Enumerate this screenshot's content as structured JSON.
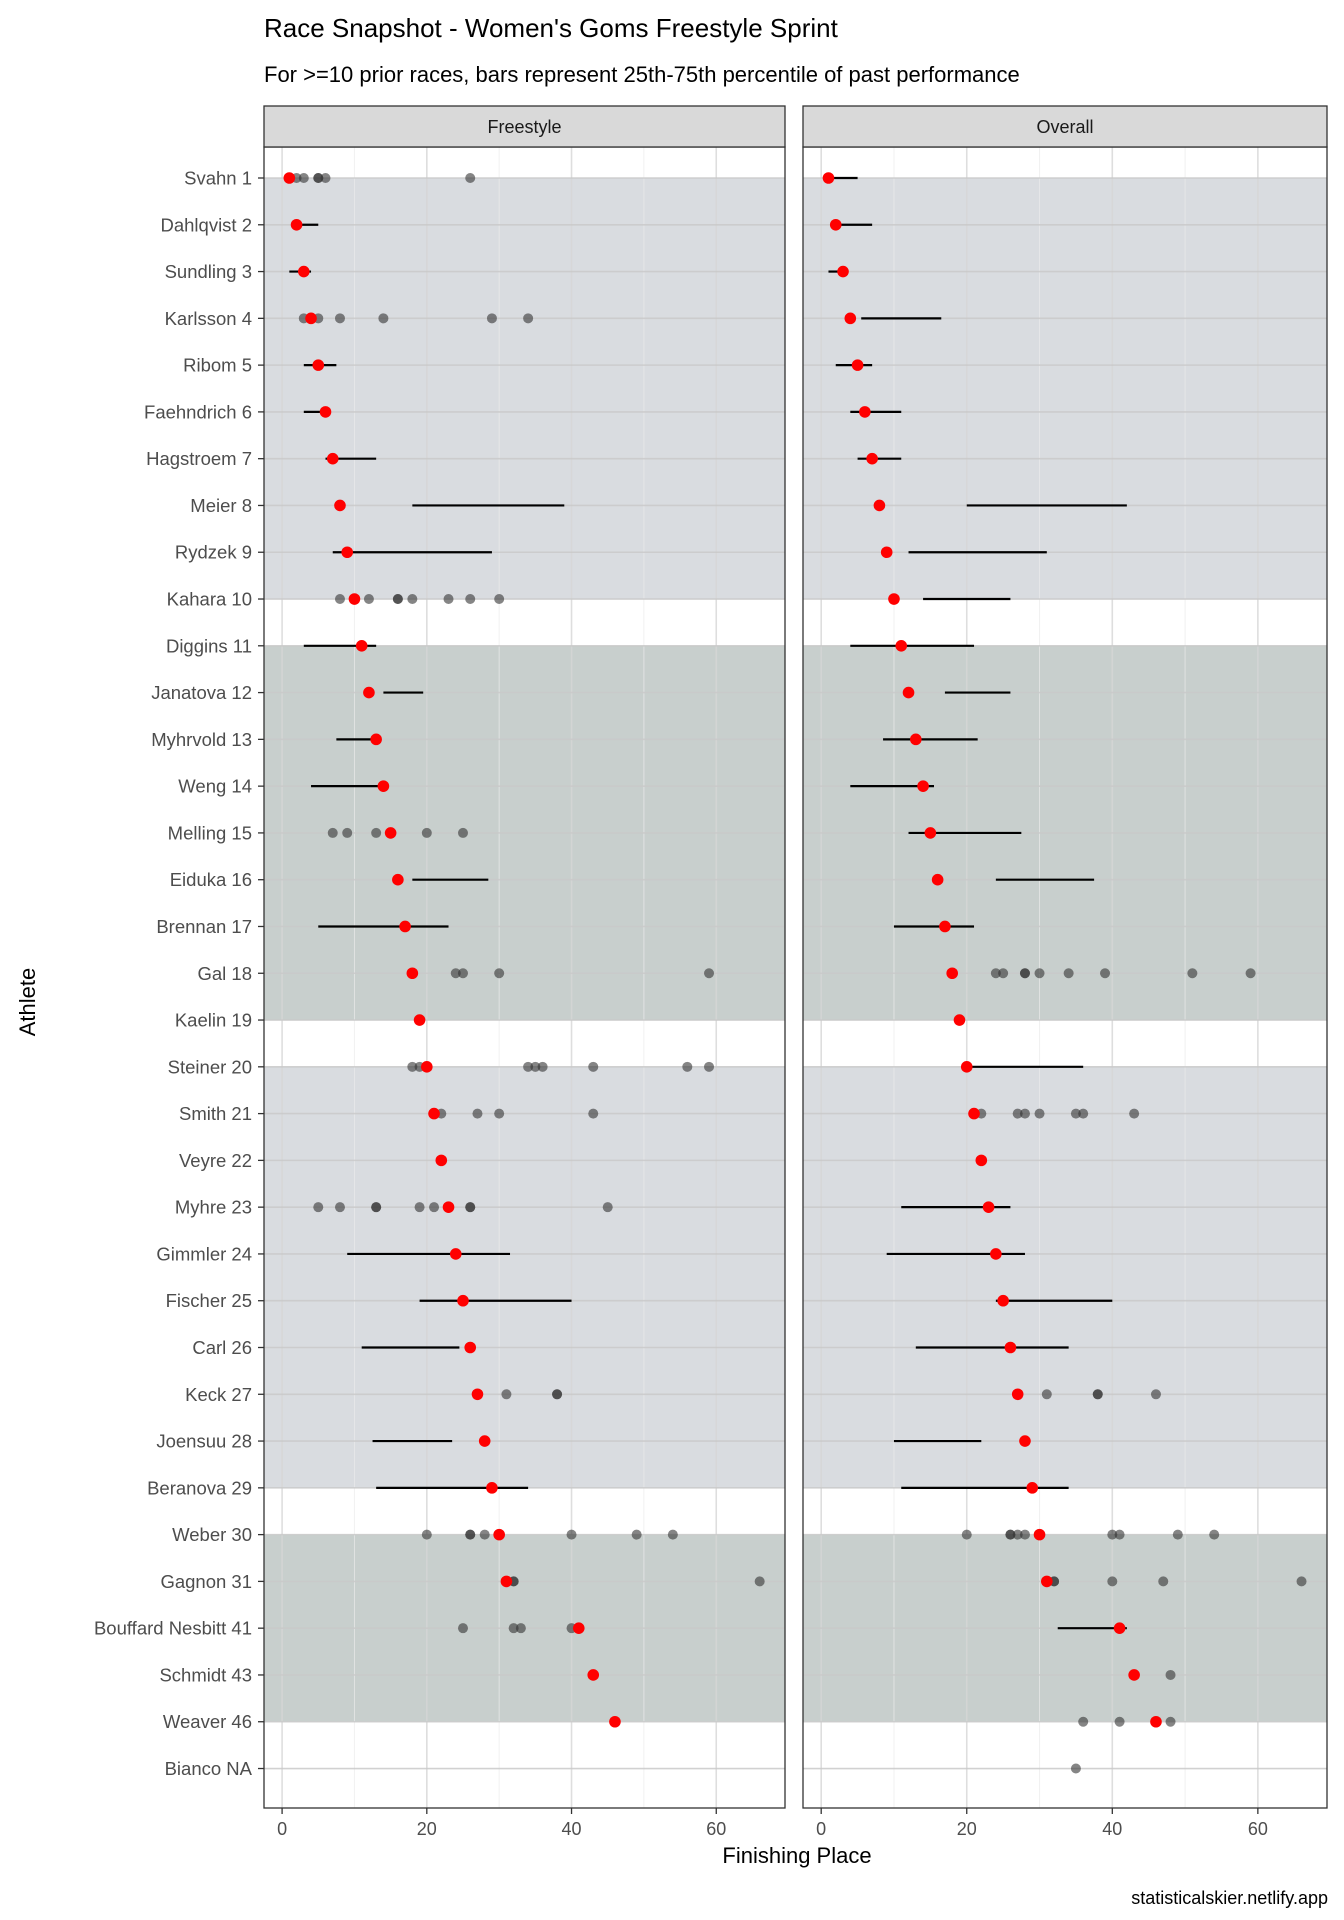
{
  "chart_data": {
    "type": "scatter",
    "title": "Race Snapshot -  Women's Goms Freestyle Sprint",
    "subtitle": "For >=10 prior races, bars represent 25th-75th percentile of past performance",
    "xlabel": "Finishing Place",
    "ylabel": "Athlete",
    "caption": "statisticalskier.netlify.app",
    "xlim": [
      -2.5,
      69.5
    ],
    "x_ticks": [
      0,
      20,
      40,
      60
    ],
    "grid": true,
    "panels": [
      "Freestyle",
      "Overall"
    ],
    "colors": {
      "current_place": "#ff0000",
      "past_place": "#333333",
      "band_light": "#d9dce0",
      "band_dark": "#c8cfcd",
      "strip": "#d9d9d9"
    },
    "bands": [
      {
        "from": 0,
        "to": 9,
        "shade": "light"
      },
      {
        "from": 10,
        "to": 18,
        "shade": "dark"
      },
      {
        "from": 19,
        "to": 28,
        "shade": "light"
      },
      {
        "from": 29,
        "to": 33,
        "shade": "dark"
      }
    ],
    "athletes": [
      {
        "label": "Svahn 1",
        "place": 1,
        "freestyle": {
          "points": [
            2,
            3,
            5,
            5,
            6,
            26
          ]
        },
        "overall": {
          "bar": [
            1,
            5
          ]
        }
      },
      {
        "label": "Dahlqvist 2",
        "place": 2,
        "freestyle": {
          "bar": [
            1.5,
            5
          ]
        },
        "overall": {
          "bar": [
            2,
            7
          ]
        }
      },
      {
        "label": "Sundling 3",
        "place": 3,
        "freestyle": {
          "bar": [
            1,
            4
          ]
        },
        "overall": {
          "bar": [
            1,
            3
          ]
        }
      },
      {
        "label": "Karlsson 4",
        "place": 4,
        "freestyle": {
          "points": [
            3,
            5,
            8,
            14,
            29,
            34
          ]
        },
        "overall": {
          "bar": [
            5.5,
            16.5
          ]
        }
      },
      {
        "label": "Ribom 5",
        "place": 5,
        "freestyle": {
          "bar": [
            3,
            7.5
          ]
        },
        "overall": {
          "bar": [
            2,
            7
          ]
        }
      },
      {
        "label": "Faehndrich 6",
        "place": 6,
        "freestyle": {
          "bar": [
            3,
            6.5
          ]
        },
        "overall": {
          "bar": [
            4,
            11
          ]
        }
      },
      {
        "label": "Hagstroem 7",
        "place": 7,
        "freestyle": {
          "bar": [
            6,
            13
          ]
        },
        "overall": {
          "bar": [
            5,
            11
          ]
        }
      },
      {
        "label": "Meier 8",
        "place": 8,
        "freestyle": {
          "bar": [
            18,
            39
          ]
        },
        "overall": {
          "bar": [
            20,
            42
          ]
        }
      },
      {
        "label": "Rydzek 9",
        "place": 9,
        "freestyle": {
          "bar": [
            7,
            29
          ]
        },
        "overall": {
          "bar": [
            12,
            31
          ]
        }
      },
      {
        "label": "Kahara 10",
        "place": 10,
        "freestyle": {
          "points": [
            8,
            12,
            16,
            16,
            18,
            23,
            26,
            30
          ]
        },
        "overall": {
          "bar": [
            14,
            26
          ]
        }
      },
      {
        "label": "Diggins 11",
        "place": 11,
        "freestyle": {
          "bar": [
            3,
            13
          ]
        },
        "overall": {
          "bar": [
            4,
            21
          ]
        }
      },
      {
        "label": "Janatova 12",
        "place": 12,
        "freestyle": {
          "bar": [
            14,
            19.5
          ]
        },
        "overall": {
          "bar": [
            17,
            26
          ]
        }
      },
      {
        "label": "Myhrvold 13",
        "place": 13,
        "freestyle": {
          "bar": [
            7.5,
            13.5
          ]
        },
        "overall": {
          "bar": [
            8.5,
            21.5
          ]
        }
      },
      {
        "label": "Weng 14",
        "place": 14,
        "freestyle": {
          "bar": [
            4,
            14
          ]
        },
        "overall": {
          "bar": [
            4,
            15.5
          ]
        }
      },
      {
        "label": "Melling 15",
        "place": 15,
        "freestyle": {
          "points": [
            7,
            9,
            13,
            20,
            25
          ]
        },
        "overall": {
          "bar": [
            12,
            27.5
          ]
        }
      },
      {
        "label": "Eiduka 16",
        "place": 16,
        "freestyle": {
          "bar": [
            18,
            28.5
          ]
        },
        "overall": {
          "bar": [
            24,
            37.5
          ]
        }
      },
      {
        "label": "Brennan 17",
        "place": 17,
        "freestyle": {
          "bar": [
            5,
            23
          ]
        },
        "overall": {
          "bar": [
            10,
            21
          ]
        }
      },
      {
        "label": "Gal 18",
        "place": 18,
        "freestyle": {
          "points": [
            24,
            25,
            30,
            59
          ]
        },
        "overall": {
          "points": [
            24,
            25,
            28,
            28,
            30,
            34,
            39,
            51,
            59
          ]
        }
      },
      {
        "label": "Kaelin 19",
        "place": 19,
        "freestyle": {},
        "overall": {}
      },
      {
        "label": "Steiner 20",
        "place": 20,
        "freestyle": {
          "points": [
            18,
            19,
            34,
            35,
            36,
            43,
            56,
            59
          ]
        },
        "overall": {
          "bar": [
            20.5,
            36
          ]
        }
      },
      {
        "label": "Smith 21",
        "place": 21,
        "freestyle": {
          "points": [
            22,
            27,
            30,
            43
          ]
        },
        "overall": {
          "points": [
            22,
            27,
            28,
            30,
            35,
            36,
            43
          ]
        }
      },
      {
        "label": "Veyre 22",
        "place": 22,
        "freestyle": {},
        "overall": {}
      },
      {
        "label": "Myhre 23",
        "place": 23,
        "freestyle": {
          "points": [
            5,
            8,
            13,
            13,
            19,
            21,
            26,
            26,
            45
          ]
        },
        "overall": {
          "bar": [
            11,
            26
          ]
        }
      },
      {
        "label": "Gimmler 24",
        "place": 24,
        "freestyle": {
          "bar": [
            9,
            31.5
          ]
        },
        "overall": {
          "bar": [
            9,
            28
          ]
        }
      },
      {
        "label": "Fischer 25",
        "place": 25,
        "freestyle": {
          "bar": [
            19,
            40
          ]
        },
        "overall": {
          "bar": [
            24,
            40
          ]
        }
      },
      {
        "label": "Carl 26",
        "place": 26,
        "freestyle": {
          "bar": [
            11,
            24.5
          ]
        },
        "overall": {
          "bar": [
            13,
            34
          ]
        }
      },
      {
        "label": "Keck 27",
        "place": 27,
        "freestyle": {
          "points": [
            31,
            38,
            38
          ]
        },
        "overall": {
          "points": [
            31,
            38,
            38,
            46
          ]
        }
      },
      {
        "label": "Joensuu 28",
        "place": 28,
        "freestyle": {
          "bar": [
            12.5,
            23.5
          ]
        },
        "overall": {
          "bar": [
            10,
            22
          ]
        }
      },
      {
        "label": "Beranova 29",
        "place": 29,
        "freestyle": {
          "bar": [
            13,
            34
          ]
        },
        "overall": {
          "bar": [
            11,
            34
          ]
        }
      },
      {
        "label": "Weber 30",
        "place": 30,
        "freestyle": {
          "points": [
            20,
            26,
            26,
            28,
            40,
            49,
            54
          ]
        },
        "overall": {
          "points": [
            20,
            26,
            26,
            27,
            28,
            40,
            41,
            49,
            54
          ]
        }
      },
      {
        "label": "Gagnon 31",
        "place": 31,
        "freestyle": {
          "points": [
            32,
            32,
            66
          ]
        },
        "overall": {
          "points": [
            32,
            32,
            40,
            47,
            66
          ]
        }
      },
      {
        "label": "Bouffard Nesbitt 41",
        "place": 41,
        "freestyle": {
          "points": [
            25,
            32,
            33,
            40
          ]
        },
        "overall": {
          "bar": [
            32.5,
            42
          ]
        }
      },
      {
        "label": "Schmidt 43",
        "place": 43,
        "freestyle": {},
        "overall": {
          "points": [
            48
          ]
        }
      },
      {
        "label": "Weaver 46",
        "place": 46,
        "freestyle": {},
        "overall": {
          "points": [
            36,
            41,
            48
          ]
        }
      },
      {
        "label": "Bianco NA",
        "place": null,
        "freestyle": {},
        "overall": {
          "points": [
            35
          ]
        }
      }
    ]
  }
}
